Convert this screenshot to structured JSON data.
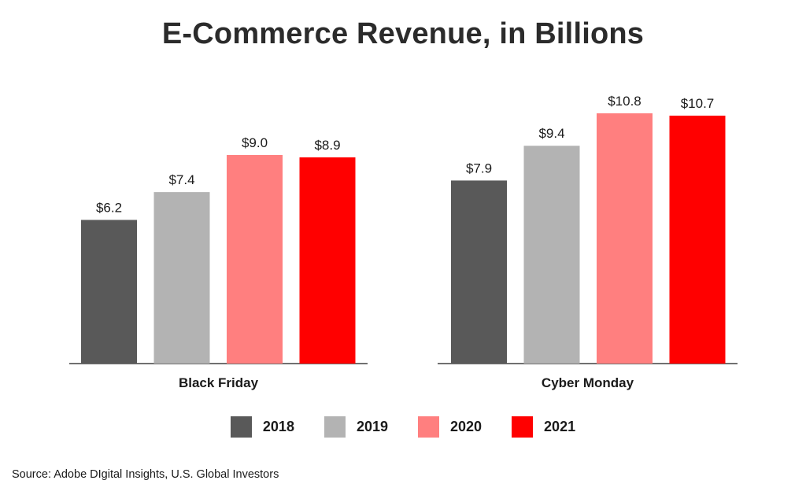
{
  "chart_data": {
    "type": "bar",
    "title": "E-Commerce Revenue, in Billions",
    "categories": [
      "Black Friday",
      "Cyber Monday"
    ],
    "series": [
      {
        "name": "2018",
        "color": "#595959",
        "values": [
          6.2,
          7.9
        ],
        "labels": [
          "$6.2",
          "$7.9"
        ]
      },
      {
        "name": "2019",
        "color": "#b3b3b3",
        "values": [
          7.4,
          9.4
        ],
        "labels": [
          "$7.4",
          "$9.4"
        ]
      },
      {
        "name": "2020",
        "color": "#ff7f7f",
        "values": [
          9.0,
          10.8
        ],
        "labels": [
          "$9.0",
          "$10.8"
        ]
      },
      {
        "name": "2021",
        "color": "#ff0000",
        "values": [
          8.9,
          10.7
        ],
        "labels": [
          "$8.9",
          "$10.7"
        ]
      }
    ],
    "ylim": [
      0,
      10.8
    ],
    "grid": false,
    "legend_position": "bottom-center",
    "xlabel": "",
    "ylabel": ""
  },
  "source": "Source: Adobe DIgital Insights, U.S. Global Investors"
}
